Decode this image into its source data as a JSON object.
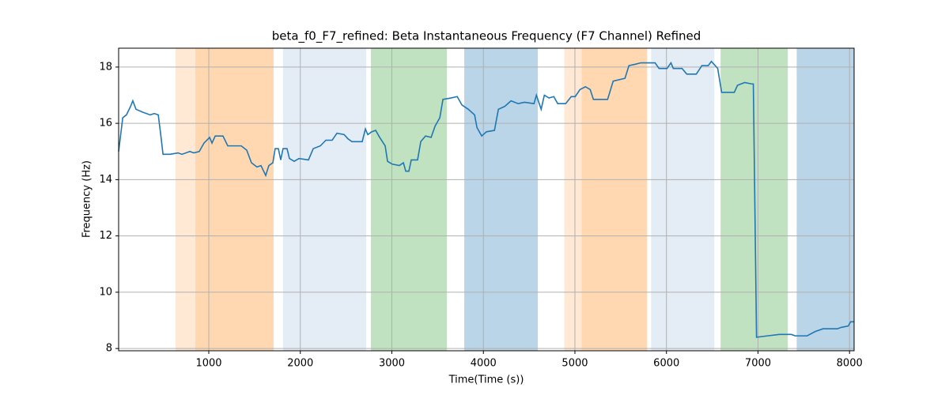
{
  "chart_data": {
    "type": "line",
    "title": "beta_f0_F7_refined: Beta Instantaneous Frequency (F7 Channel) Refined",
    "x_label": "Time(Time (s))",
    "y_label": "Frequency (Hz)",
    "xlim": [
      15,
      8050
    ],
    "ylim": [
      7.92,
      18.67
    ],
    "xticks": [
      1000,
      2000,
      3000,
      4000,
      5000,
      6000,
      7000,
      8000
    ],
    "yticks": [
      8,
      10,
      12,
      14,
      16,
      18
    ],
    "grid": true,
    "line_color": "#1f77b4",
    "bands": [
      {
        "start": 637,
        "end": 853,
        "color": "#ffe8d4"
      },
      {
        "start": 853,
        "end": 1708,
        "color": "#ffd8b2"
      },
      {
        "start": 1811,
        "end": 2719,
        "color": "#e4ecf6"
      },
      {
        "start": 2771,
        "end": 3601,
        "color": "#c0e2c0"
      },
      {
        "start": 3791,
        "end": 4595,
        "color": "#bad4e8"
      },
      {
        "start": 4883,
        "end": 5073,
        "color": "#ffe8d4"
      },
      {
        "start": 5073,
        "end": 5789,
        "color": "#ffd8b2"
      },
      {
        "start": 5832,
        "end": 6523,
        "color": "#e4ecf6"
      },
      {
        "start": 6591,
        "end": 7326,
        "color": "#c0e2c0"
      },
      {
        "start": 7423,
        "end": 8050,
        "color": "#bad4e8"
      }
    ],
    "x": [
      15,
      60,
      100,
      145,
      170,
      205,
      275,
      360,
      405,
      448,
      475,
      500,
      577,
      663,
      707,
      793,
      836,
      896,
      948,
      1009,
      1035,
      1070,
      1155,
      1207,
      1354,
      1414,
      1466,
      1526,
      1570,
      1622,
      1656,
      1700,
      1725,
      1760,
      1786,
      1811,
      1855,
      1881,
      1933,
      1985,
      2089,
      2141,
      2219,
      2279,
      2348,
      2400,
      2478,
      2521,
      2564,
      2676,
      2711,
      2737,
      2780,
      2823,
      2867,
      2927,
      2953,
      3004,
      3082,
      3126,
      3152,
      3186,
      3212,
      3281,
      3316,
      3368,
      3429,
      3472,
      3524,
      3558,
      3645,
      3714,
      3766,
      3835,
      3904,
      3930,
      3982,
      4034,
      4121,
      4164,
      4233,
      4302,
      4380,
      4449,
      4553,
      4579,
      4631,
      4666,
      4717,
      4769,
      4812,
      4899,
      4960,
      5003,
      5055,
      5115,
      5167,
      5202,
      5357,
      5418,
      5547,
      5590,
      5660,
      5720,
      5876,
      5919,
      6006,
      6049,
      6075,
      6170,
      6222,
      6326,
      6387,
      6456,
      6491,
      6560,
      6603,
      6741,
      6776,
      6854,
      6932,
      6949,
      6984,
      7105,
      7234,
      7364,
      7407,
      7537,
      7623,
      7710,
      7866,
      7909,
      7986,
      8012,
      8050
    ],
    "values": [
      15.0,
      16.2,
      16.3,
      16.6,
      16.8,
      16.5,
      16.4,
      16.3,
      16.35,
      16.3,
      15.6,
      14.9,
      14.9,
      14.95,
      14.9,
      15.0,
      14.95,
      15.0,
      15.3,
      15.5,
      15.3,
      15.55,
      15.55,
      15.2,
      15.2,
      15.05,
      14.6,
      14.45,
      14.5,
      14.15,
      14.5,
      14.6,
      15.1,
      15.1,
      14.7,
      15.1,
      15.1,
      14.75,
      14.65,
      14.75,
      14.7,
      15.1,
      15.2,
      15.4,
      15.4,
      15.65,
      15.6,
      15.45,
      15.35,
      15.35,
      15.8,
      15.6,
      15.7,
      15.75,
      15.5,
      15.2,
      14.65,
      14.55,
      14.5,
      14.6,
      14.3,
      14.3,
      14.7,
      14.7,
      15.35,
      15.55,
      15.5,
      15.9,
      16.2,
      16.85,
      16.9,
      16.95,
      16.65,
      16.5,
      16.3,
      15.85,
      15.55,
      15.7,
      15.75,
      16.5,
      16.6,
      16.8,
      16.7,
      16.75,
      16.7,
      17.0,
      16.5,
      17.0,
      16.9,
      16.95,
      16.7,
      16.7,
      16.95,
      16.95,
      17.2,
      17.3,
      17.2,
      16.85,
      16.85,
      17.5,
      17.6,
      18.05,
      18.1,
      18.15,
      18.15,
      17.95,
      17.95,
      18.15,
      17.95,
      17.95,
      17.75,
      17.75,
      18.05,
      18.05,
      18.2,
      17.95,
      17.1,
      17.1,
      17.35,
      17.45,
      17.4,
      17.4,
      8.4,
      8.45,
      8.5,
      8.5,
      8.45,
      8.45,
      8.6,
      8.7,
      8.7,
      8.75,
      8.8,
      8.95,
      8.95
    ]
  }
}
